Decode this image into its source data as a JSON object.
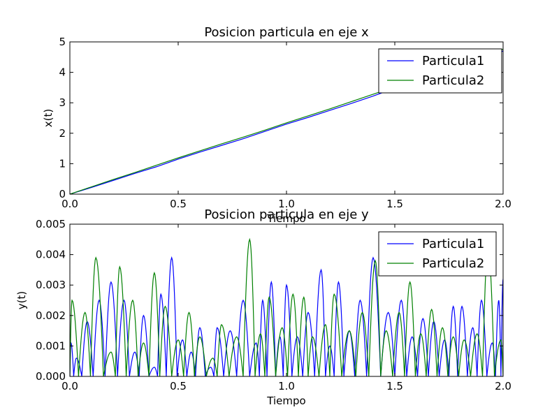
{
  "chart_data": [
    {
      "type": "line",
      "title": "Posicion particula en eje x",
      "xlabel": "Tiempo",
      "ylabel": "x(t)",
      "xlim": [
        0,
        2
      ],
      "ylim": [
        0,
        5
      ],
      "xticks": [
        "0.0",
        "0.5",
        "1.0",
        "1.5",
        "2.0"
      ],
      "yticks": [
        "0",
        "1",
        "2",
        "3",
        "4",
        "5"
      ],
      "legend": "top-right",
      "series": [
        {
          "name": "Particula1",
          "color": "#0000ff",
          "x": [
            0,
            0.1,
            0.2,
            0.3,
            0.4,
            0.5,
            0.6,
            0.7,
            0.8,
            0.9,
            1.0,
            1.1,
            1.2,
            1.3,
            1.4,
            1.5,
            1.6,
            1.7,
            1.8,
            1.9,
            2.0
          ],
          "y": [
            0,
            0.22,
            0.45,
            0.68,
            0.9,
            1.15,
            1.38,
            1.6,
            1.82,
            2.06,
            2.3,
            2.52,
            2.75,
            2.98,
            3.22,
            3.48,
            3.72,
            3.96,
            4.2,
            4.45,
            4.7
          ]
        },
        {
          "name": "Particula2",
          "color": "#008000",
          "x": [
            0,
            0.1,
            0.2,
            0.3,
            0.4,
            0.5,
            0.6,
            0.7,
            0.8,
            0.9,
            1.0,
            1.1,
            1.2,
            1.3,
            1.4,
            1.5,
            1.6,
            1.7,
            1.8,
            1.9,
            2.0
          ],
          "y": [
            0,
            0.24,
            0.48,
            0.71,
            0.95,
            1.19,
            1.42,
            1.65,
            1.87,
            2.1,
            2.34,
            2.57,
            2.8,
            3.04,
            3.28,
            3.52,
            3.77,
            4.02,
            4.27,
            4.52,
            4.76
          ]
        }
      ]
    },
    {
      "type": "line",
      "title": "Posicion particula en eje y",
      "xlabel": "Tiempo",
      "ylabel": "y(t)",
      "xlim": [
        0,
        2
      ],
      "ylim": [
        0,
        0.005
      ],
      "xticks": [
        "0.0",
        "0.5",
        "1.0",
        "1.5",
        "2.0"
      ],
      "yticks": [
        "0.000",
        "0.001",
        "0.002",
        "0.003",
        "0.004",
        "0.005"
      ],
      "legend": "top-right",
      "series": [
        {
          "name": "Particula1",
          "color": "#0000ff",
          "peaks": [
            [
              0.005,
              0.0011
            ],
            [
              0.03,
              0.0006
            ],
            [
              0.08,
              0.0018
            ],
            [
              0.135,
              0.0025
            ],
            [
              0.19,
              0.0031
            ],
            [
              0.25,
              0.0025
            ],
            [
              0.3,
              0.0008
            ],
            [
              0.34,
              0.002
            ],
            [
              0.39,
              0.0003
            ],
            [
              0.42,
              0.0027
            ],
            [
              0.47,
              0.0039
            ],
            [
              0.52,
              0.0012
            ],
            [
              0.56,
              0.0008
            ],
            [
              0.6,
              0.0016
            ],
            [
              0.65,
              0.0003
            ],
            [
              0.68,
              0.0016
            ],
            [
              0.74,
              0.0015
            ],
            [
              0.8,
              0.0025
            ],
            [
              0.86,
              0.0011
            ],
            [
              0.89,
              0.0025
            ],
            [
              0.93,
              0.0031
            ],
            [
              0.97,
              0.0013
            ],
            [
              1.0,
              0.003
            ],
            [
              1.05,
              0.0013
            ],
            [
              1.1,
              0.0021
            ],
            [
              1.16,
              0.0035
            ],
            [
              1.2,
              0.001
            ],
            [
              1.24,
              0.0031
            ],
            [
              1.29,
              0.0015
            ],
            [
              1.34,
              0.0025
            ],
            [
              1.4,
              0.0039
            ],
            [
              1.47,
              0.0021
            ],
            [
              1.53,
              0.0025
            ],
            [
              1.58,
              0.0013
            ],
            [
              1.63,
              0.0019
            ],
            [
              1.68,
              0.0018
            ],
            [
              1.73,
              0.0012
            ],
            [
              1.77,
              0.0023
            ],
            [
              1.81,
              0.0023
            ],
            [
              1.86,
              0.0016
            ],
            [
              1.9,
              0.0025
            ],
            [
              1.95,
              0.0011
            ],
            [
              1.98,
              0.0025
            ],
            [
              2.0,
              0.0032
            ]
          ]
        },
        {
          "name": "Particula2",
          "color": "#008000",
          "peaks": [
            [
              0.01,
              0.0025
            ],
            [
              0.07,
              0.0021
            ],
            [
              0.12,
              0.0039
            ],
            [
              0.19,
              0.0008
            ],
            [
              0.23,
              0.0036
            ],
            [
              0.29,
              0.0025
            ],
            [
              0.34,
              0.0011
            ],
            [
              0.39,
              0.0034
            ],
            [
              0.44,
              0.0023
            ],
            [
              0.5,
              0.0012
            ],
            [
              0.55,
              0.0021
            ],
            [
              0.6,
              0.0013
            ],
            [
              0.66,
              0.0006
            ],
            [
              0.7,
              0.0017
            ],
            [
              0.77,
              0.0013
            ],
            [
              0.83,
              0.0045
            ],
            [
              0.88,
              0.0014
            ],
            [
              0.92,
              0.0026
            ],
            [
              0.98,
              0.0016
            ],
            [
              1.03,
              0.0027
            ],
            [
              1.08,
              0.0026
            ],
            [
              1.12,
              0.0013
            ],
            [
              1.18,
              0.0017
            ],
            [
              1.22,
              0.0027
            ],
            [
              1.29,
              0.0015
            ],
            [
              1.35,
              0.0021
            ],
            [
              1.41,
              0.0038
            ],
            [
              1.46,
              0.0015
            ],
            [
              1.52,
              0.0021
            ],
            [
              1.57,
              0.0031
            ],
            [
              1.62,
              0.0014
            ],
            [
              1.67,
              0.0022
            ],
            [
              1.72,
              0.0016
            ],
            [
              1.77,
              0.0013
            ],
            [
              1.82,
              0.0012
            ],
            [
              1.88,
              0.0014
            ],
            [
              1.93,
              0.0043
            ],
            [
              1.99,
              0.0012
            ]
          ]
        }
      ]
    }
  ]
}
